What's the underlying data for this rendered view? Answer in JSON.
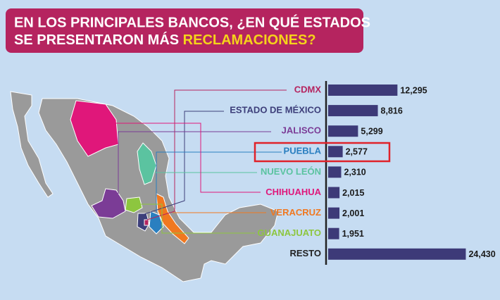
{
  "chart_data": {
    "type": "bar",
    "orientation": "horizontal",
    "title": "EN LOS PRINCIPALES BANCOS, ¿EN QUÉ ESTADOS",
    "title_line2": "SE PRESENTARON MÁS",
    "title_highlight": "RECLAMACIONES?",
    "categories": [
      "CDMX",
      "ESTADO DE MÉXICO",
      "JALISCO",
      "PUEBLA",
      "NUEVO LEÓN",
      "CHIHUAHUA",
      "VERACRUZ",
      "GUANAJUATO",
      "RESTO"
    ],
    "category_colors": [
      "#b5245f",
      "#3d3f7a",
      "#7b3c96",
      "#2a7fc0",
      "#5bc3a0",
      "#e0177a",
      "#f07820",
      "#8dc63f",
      "#222222"
    ],
    "values": [
      12295,
      8816,
      5299,
      2577,
      2310,
      2015,
      2001,
      1951,
      24430
    ],
    "value_labels": [
      "12,295",
      "8,816",
      "5,299",
      "2,577",
      "2,310",
      "2,015",
      "2,001",
      "1,951",
      "24,430"
    ],
    "color": "#3d3a78",
    "xlim": [
      0,
      25000
    ]
  }
}
